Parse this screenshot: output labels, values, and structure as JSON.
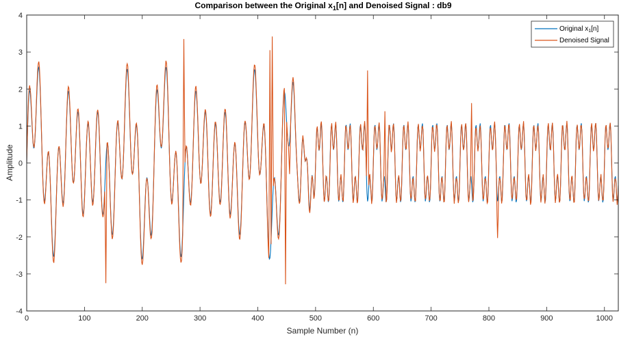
{
  "chart_data": {
    "type": "line",
    "title_main": "Comparison between the Original x",
    "title_sub": "1",
    "title_rest": "[n] and Denoised Signal : db9",
    "xlabel": "Sample Number (n)",
    "ylabel": "Amplitude",
    "xlim": [
      0,
      1024
    ],
    "ylim": [
      -4,
      4
    ],
    "xticks": [
      0,
      100,
      200,
      300,
      400,
      500,
      600,
      700,
      800,
      900,
      1000
    ],
    "yticks": [
      -4,
      -3,
      -2,
      -1,
      0,
      1,
      2,
      3,
      4
    ],
    "grid": false,
    "legend_position": "top-right",
    "series": [
      {
        "name_main": "Original x",
        "name_sub": "1",
        "name_rest": "[n]",
        "color": "#0072BD",
        "segments": [
          {
            "x_start": 0,
            "x_end": 440,
            "components": [
              [
                0.8,
                0.0855,
                0
              ],
              [
                1.2,
                0.3704,
                0
              ],
              [
                0.9,
                0.114,
                0
              ]
            ]
          },
          {
            "x_start": 440,
            "x_end": 512,
            "ramp_to": [
              [
                0.8,
                0.0855,
                0
              ],
              [
                1.2,
                0.3704,
                0
              ],
              [
                0.9,
                0.114,
                0
              ]
            ],
            "ramp_from": [
              [
                0.9,
                0.2513,
                0
              ],
              [
                0.55,
                0.754,
                0
              ]
            ]
          },
          {
            "x_start": 512,
            "x_end": 1024,
            "components": [
              [
                0.9,
                0.2513,
                0
              ],
              [
                0.55,
                0.754,
                0
              ]
            ]
          }
        ]
      },
      {
        "name": "Denoised Signal",
        "color": "#D95319",
        "spike_points": [
          [
            425,
            3.42
          ],
          [
            421,
            3.05
          ],
          [
            448,
            -3.28
          ],
          [
            815,
            -2.03
          ],
          [
            770,
            1.62
          ],
          [
            590,
            2.5
          ],
          [
            620,
            1.4
          ],
          [
            455,
            -0.3
          ],
          [
            137,
            -3.25
          ],
          [
            272,
            3.35
          ]
        ]
      }
    ]
  }
}
